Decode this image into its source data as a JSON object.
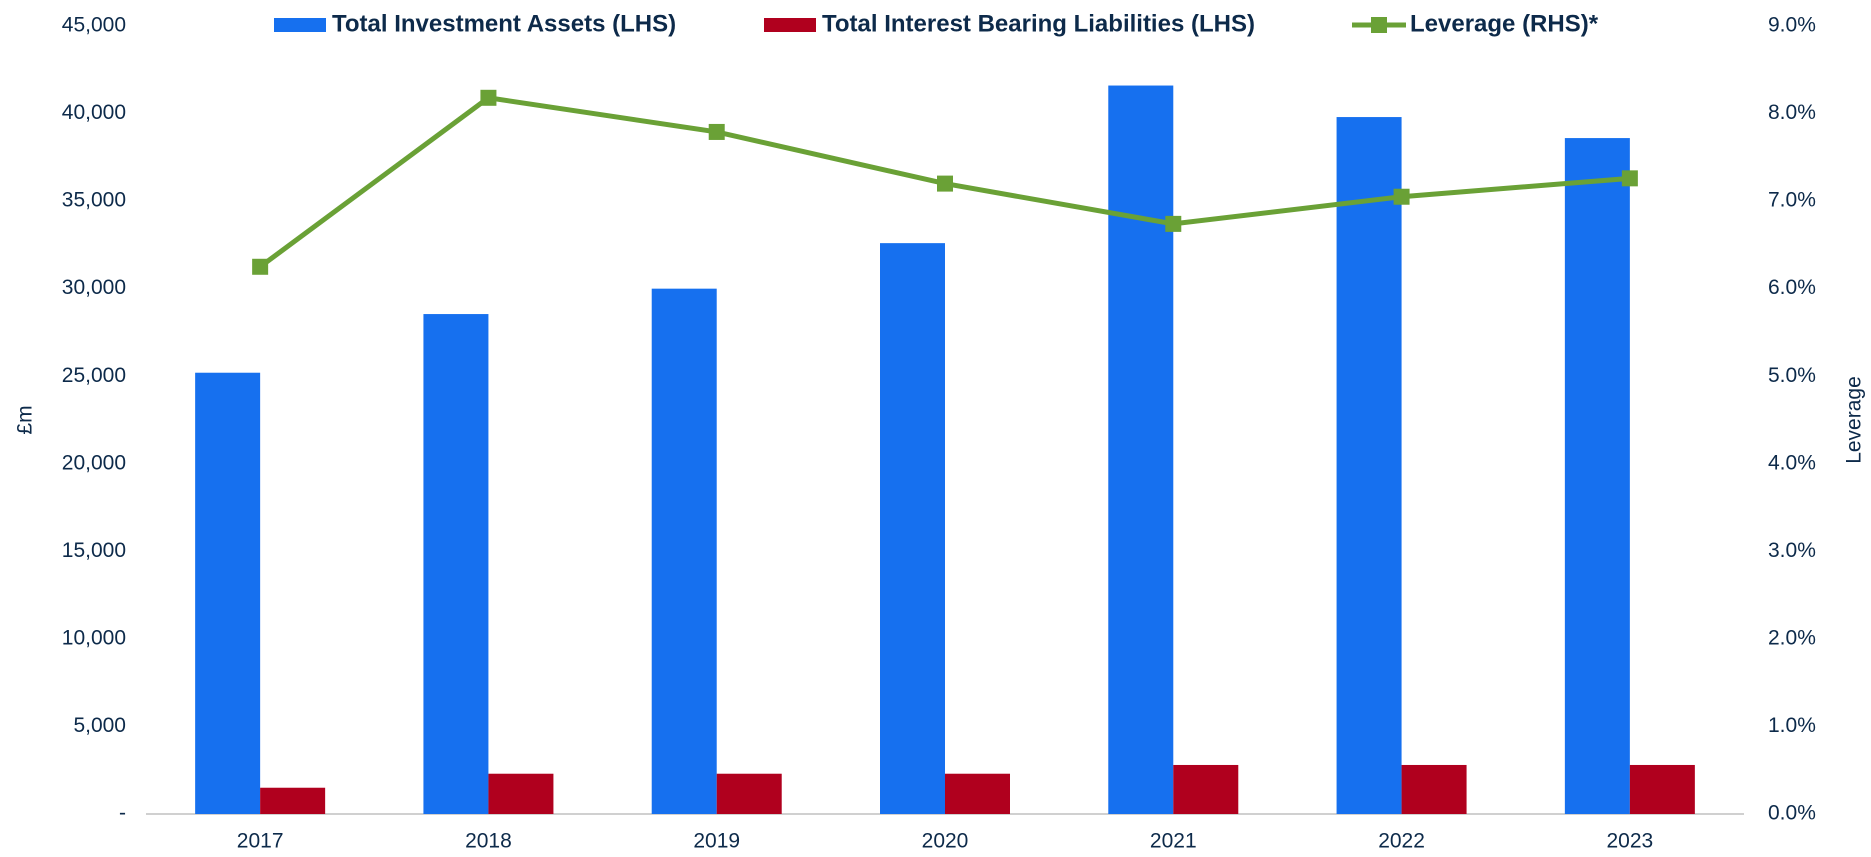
{
  "chart_data": {
    "type": "bar",
    "categories": [
      "2017",
      "2018",
      "2019",
      "2020",
      "2021",
      "2022",
      "2023"
    ],
    "series": [
      {
        "name": "Total Investment Assets (LHS)",
        "color": "#1670ef",
        "type": "bar",
        "values": [
          25200,
          28550,
          30000,
          32600,
          41600,
          39800,
          38600
        ]
      },
      {
        "name": "Total Interest Bearing Liabilities (LHS)",
        "color": "#b0001e",
        "type": "bar",
        "values": [
          1500,
          2300,
          2300,
          2300,
          2800,
          2800,
          2800
        ]
      },
      {
        "name": "Leverage (RHS)*",
        "color": "#6aa136",
        "type": "line",
        "axis": "y2",
        "values": [
          6.25,
          8.18,
          7.79,
          7.2,
          6.74,
          7.05,
          7.26
        ]
      }
    ],
    "ylabel": "£m",
    "y2label": "Leverage",
    "ylim": [
      0,
      45000
    ],
    "yticks": [
      {
        "value": 0,
        "label": "-"
      },
      {
        "value": 5000,
        "label": "5,000"
      },
      {
        "value": 10000,
        "label": "10,000"
      },
      {
        "value": 15000,
        "label": "15,000"
      },
      {
        "value": 20000,
        "label": "20,000"
      },
      {
        "value": 25000,
        "label": "25,000"
      },
      {
        "value": 30000,
        "label": "30,000"
      },
      {
        "value": 35000,
        "label": "35,000"
      },
      {
        "value": 40000,
        "label": "40,000"
      },
      {
        "value": 45000,
        "label": "45,000"
      }
    ],
    "y2lim": [
      0,
      9
    ],
    "y2ticks": [
      {
        "value": 0,
        "label": "0.0%"
      },
      {
        "value": 1,
        "label": "1.0%"
      },
      {
        "value": 2,
        "label": "2.0%"
      },
      {
        "value": 3,
        "label": "3.0%"
      },
      {
        "value": 4,
        "label": "4.0%"
      },
      {
        "value": 5,
        "label": "5.0%"
      },
      {
        "value": 6,
        "label": "6.0%"
      },
      {
        "value": 7,
        "label": "7.0%"
      },
      {
        "value": 8,
        "label": "8.0%"
      },
      {
        "value": 9,
        "label": "9.0%"
      }
    ],
    "grid": false,
    "legend": "top"
  }
}
